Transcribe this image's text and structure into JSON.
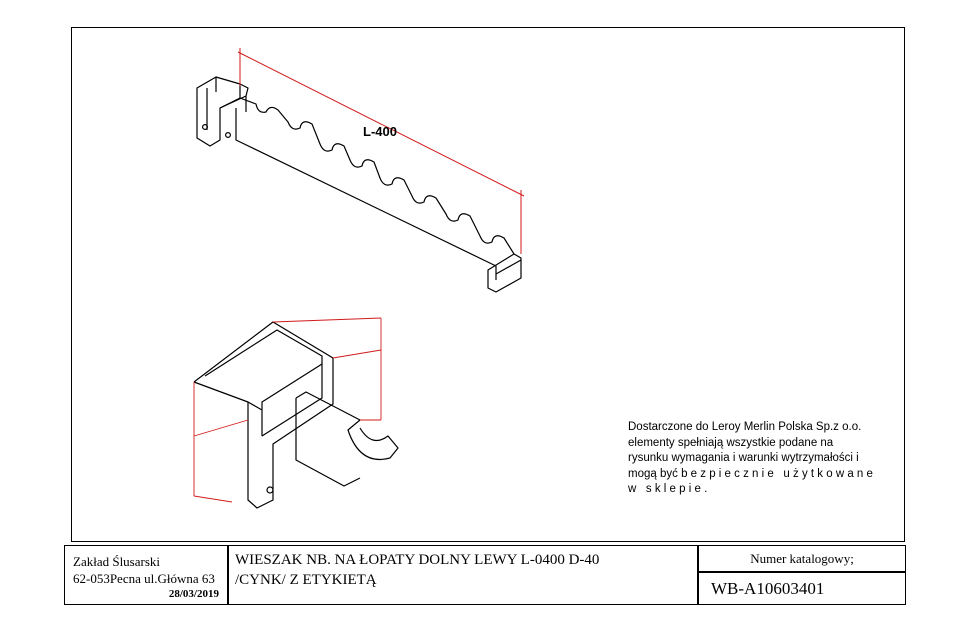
{
  "drawing": {
    "dimension_label": "L-400",
    "supplier_note": {
      "line1": "Dostarczone do Leroy Merlin Polska Sp.z o.o.",
      "line2": "elementy spełniają wszystkie podane na",
      "line3": "rysunku wymagania i warunki wytrzymałości i",
      "line4_prefix": "mogą być",
      "line4_spaced": "bezpiecznie użytkowane",
      "line5": "w sklepie."
    }
  },
  "title_block": {
    "company_name": "Zakład Ślusarski",
    "company_address": "62-053Pecna ul.Główna 63",
    "date": "28/03/2019",
    "title_line1": "WIESZAK NB. NA ŁOPATY DOLNY LEWY L-0400 D-40",
    "title_line2": "/CYNK/ Z ETYKIETĄ",
    "catalog_label": "Numer katalogowy;",
    "catalog_number": "WB-A10603401"
  },
  "colors": {
    "line": "#000000",
    "dimension": "#d11a1a"
  }
}
